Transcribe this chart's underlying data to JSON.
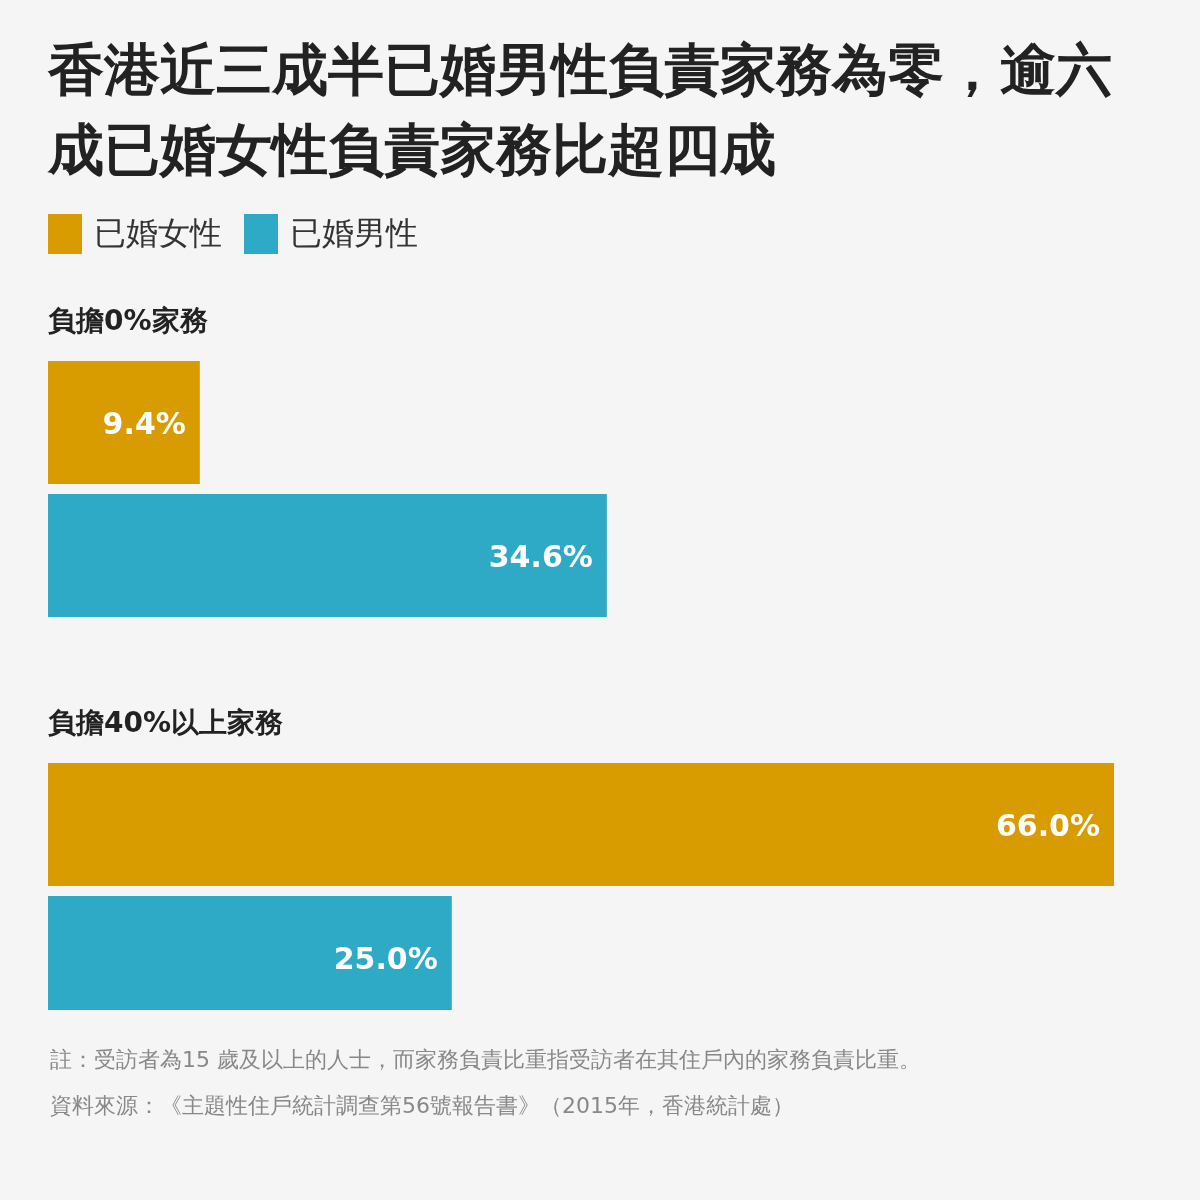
{
  "chart_data": {
    "type": "bar",
    "orientation": "horizontal",
    "title": "香港近三成半已婚男性負責家務為零，逾六成已婚女性負責家務比超四成",
    "categories": [
      "負擔0%家務",
      "負擔40%以上家務"
    ],
    "legend": "top left",
    "series": [
      {
        "name": "已婚女性",
        "color": "#d89c00",
        "values": [
          9.4,
          66.0
        ],
        "value_labels": [
          "9.4%",
          "66.0%"
        ]
      },
      {
        "name": "已婚男性",
        "color": "#2eaac6",
        "values": [
          34.6,
          25.0
        ],
        "value_labels": [
          "34.6%",
          "25.0%"
        ]
      }
    ],
    "annotations": [
      "註：受訪者為15 歲及以上的人士，而家務負責比重指受訪者在其住戶內的家務負責比重。",
      "資料來源：《主題性住戶統計調查第56號報告書》（2015年，香港統計處）"
    ]
  }
}
